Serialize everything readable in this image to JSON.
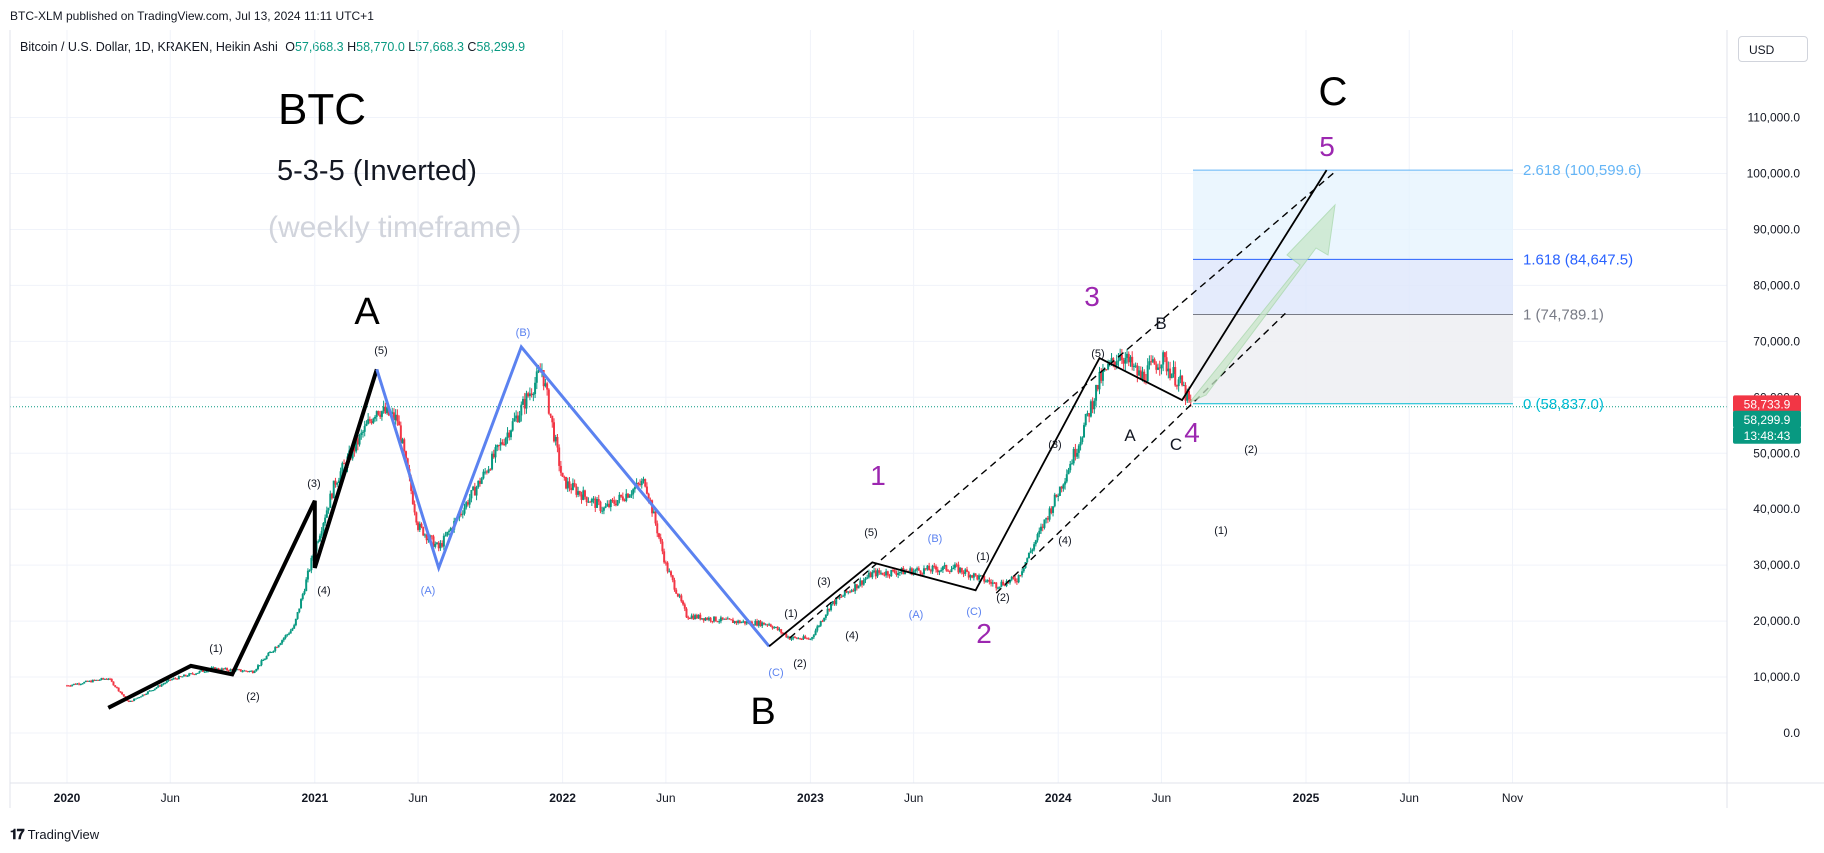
{
  "header": {
    "published": "BTC-XLM published on TradingView.com, Jul 13, 2024 11:11 UTC+1",
    "symbol": "Bitcoin / U.S. Dollar, 1D, KRAKEN, Heikin Ashi",
    "ohlc": {
      "o_label": "O",
      "o": "57,668.3",
      "h_label": "H",
      "h": "58,770.0",
      "l_label": "L",
      "l": "57,668.3",
      "c_label": "C",
      "c": "58,299.9"
    },
    "currency": "USD"
  },
  "footer": {
    "brand": "TradingView"
  },
  "annotations": {
    "title": "BTC",
    "pattern": "5-3-5 (Inverted)",
    "timeframe_note": "(weekly timeframe)"
  },
  "colors": {
    "up": "#089981",
    "down": "#f23645",
    "wave_black": "#000000",
    "wave_blue": "#5b82f0",
    "purple": "#9c27b0",
    "fib_blue": "#2962ff",
    "fib_light": "#64b5f6",
    "cyan": "#00bcd4"
  },
  "chart_data": {
    "type": "candlestick",
    "y_axis": {
      "ticks": [
        "0.0",
        "10,000.0",
        "20,000.0",
        "30,000.0",
        "40,000.0",
        "50,000.0",
        "60,000.0",
        "70,000.0",
        "80,000.0",
        "90,000.0",
        "100,000.0",
        "110,000.0"
      ],
      "ylim": [
        -4000,
        116000
      ]
    },
    "x_axis": {
      "ticks": [
        "2020",
        "Jun",
        "2021",
        "Jun",
        "2022",
        "Jun",
        "2023",
        "Jun",
        "2024",
        "Jun",
        "2025",
        "Jun",
        "Nov"
      ]
    },
    "price_labels": {
      "last": "58,733.9",
      "current": "58,299.9",
      "countdown": "13:48:43"
    },
    "fibonacci": [
      {
        "level": "2.618 (100,599.6)",
        "value": 100599.6
      },
      {
        "level": "1.618 (84,647.5)",
        "value": 84647.5
      },
      {
        "level": "1 (74,789.1)",
        "value": 74789.1
      },
      {
        "level": "0 (58,837.0)",
        "value": 58837.0
      }
    ],
    "wave_labels": {
      "major": [
        "A",
        "B",
        "C"
      ],
      "purple": [
        "1",
        "2",
        "3",
        "4",
        "5"
      ],
      "sub_black": [
        "(1)",
        "(2)",
        "(3)",
        "(4)",
        "(5)",
        "(1)",
        "(2)",
        "(3)",
        "(4)",
        "(5)",
        "(1)",
        "(2)",
        "(3)",
        "(4)",
        "(5)",
        "(1)",
        "(2)"
      ],
      "sub_blue": [
        "(A)",
        "(B)",
        "(C)",
        "(A)",
        "(B)",
        "(C)"
      ],
      "corrective": [
        "A",
        "B",
        "C"
      ]
    },
    "black_wave_path": [
      [
        "2020-03",
        4500
      ],
      [
        "2020-07",
        12000
      ],
      [
        "2020-09",
        10500
      ],
      [
        "2021-01",
        41500
      ],
      [
        "2021-01",
        29500
      ],
      [
        "2021-04",
        65000
      ],
      [
        "2022-11",
        15500
      ],
      [
        "2023-04",
        30500
      ],
      [
        "2023-09",
        25500
      ],
      [
        "2024-03",
        67000
      ],
      [
        "2024-07",
        59500
      ],
      [
        "2025-02",
        100600
      ]
    ],
    "blue_wave_path": [
      [
        "2021-04",
        65000
      ],
      [
        "2021-07",
        29500
      ],
      [
        "2021-11",
        69000
      ],
      [
        "2022-11",
        15500
      ]
    ]
  }
}
